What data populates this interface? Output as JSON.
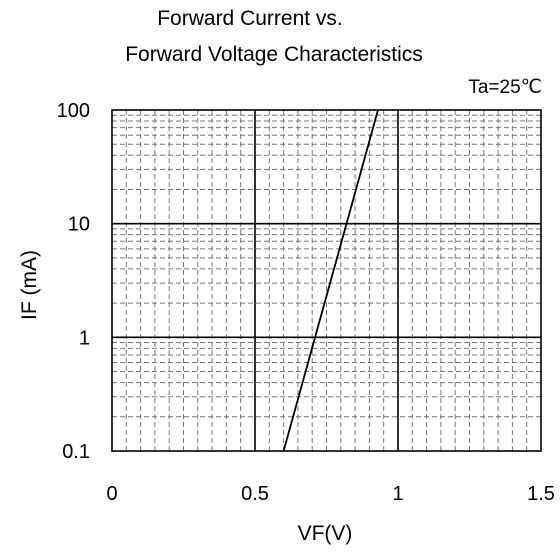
{
  "chart_data": {
    "type": "line",
    "title_line1": "Forward Current vs.",
    "title_line2": "Forward Voltage Characteristics",
    "annotation": "Ta=25℃",
    "xlabel": "VF(V)",
    "ylabel": "IF (mA)",
    "xlim": [
      0,
      1.5
    ],
    "ylim": [
      0.1,
      100
    ],
    "yscale": "log",
    "x_ticks": [
      "0",
      "0.5",
      "1",
      "1.5"
    ],
    "y_ticks": [
      "100",
      "10",
      "1",
      "0.1"
    ],
    "grid": true,
    "series": [
      {
        "x": [
          0.6,
          0.93
        ],
        "y": [
          0.1,
          100
        ],
        "color": "#000000"
      }
    ]
  }
}
